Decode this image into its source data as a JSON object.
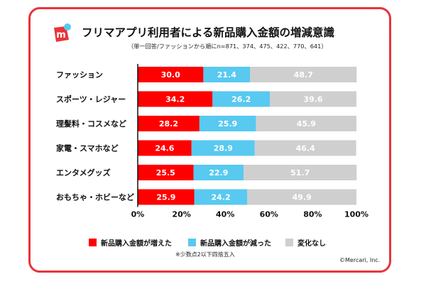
{
  "title": "フリマアプリ利用者による新品購入金額の増減意識",
  "subtitle": "（単一回答/ファッションから順にn=871、374、475、422、770、641）",
  "note": "※少数点2以下四捨五入",
  "credit": "©Mercari, Inc.",
  "colors": {
    "brand": "#e8343a",
    "increased": "#ff0000",
    "decreased": "#58c9f0",
    "unchanged": "#cfcfcf"
  },
  "chart_data": {
    "type": "bar",
    "orientation": "horizontal",
    "stacked": true,
    "categories": [
      "ファッション",
      "スポーツ・レジャー",
      "理髪料・コスメなど",
      "家電・スマホなど",
      "エンタメグッズ",
      "おもちゃ・ホビーなど"
    ],
    "series": [
      {
        "name": "新品購入金額が増えた",
        "color": "#ff0000",
        "values": [
          30.0,
          34.2,
          28.2,
          24.6,
          25.5,
          25.9
        ]
      },
      {
        "name": "新品購入金額が減った",
        "color": "#58c9f0",
        "values": [
          21.4,
          26.2,
          25.9,
          28.9,
          22.9,
          24.2
        ]
      },
      {
        "name": "変化なし",
        "color": "#cfcfcf",
        "values": [
          48.7,
          39.6,
          45.9,
          46.4,
          51.7,
          49.9
        ]
      }
    ],
    "xlim": [
      0,
      100
    ],
    "xticks": [
      "0%",
      "20%",
      "40%",
      "60%",
      "80%",
      "100%"
    ],
    "legend_position": "bottom",
    "grid": false
  }
}
